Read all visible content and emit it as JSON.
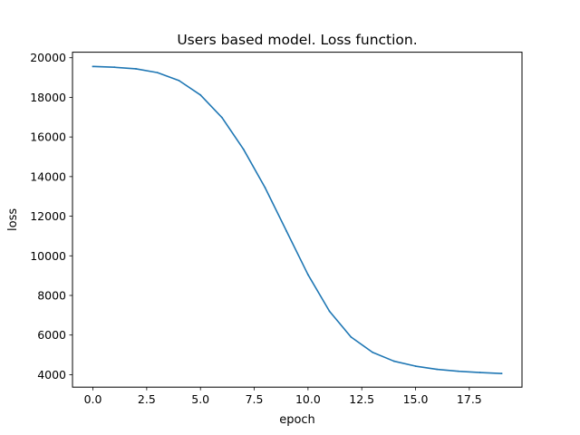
{
  "chart_data": {
    "type": "line",
    "title": "Users based model. Loss function.",
    "xlabel": "epoch",
    "ylabel": "loss",
    "xlim": [
      -0.95,
      19.95
    ],
    "ylim": [
      3370,
      20280
    ],
    "xticks": [
      0.0,
      2.5,
      5.0,
      7.5,
      10.0,
      12.5,
      15.0,
      17.5
    ],
    "xtick_labels": [
      "0.0",
      "2.5",
      "5.0",
      "7.5",
      "10.0",
      "12.5",
      "15.0",
      "17.5"
    ],
    "yticks": [
      4000,
      6000,
      8000,
      10000,
      12000,
      14000,
      16000,
      18000,
      20000
    ],
    "ytick_labels": [
      "4000",
      "6000",
      "8000",
      "10000",
      "12000",
      "14000",
      "16000",
      "18000",
      "20000"
    ],
    "grid": false,
    "series": [
      {
        "color": "#1f77b4",
        "x": [
          0,
          1,
          2,
          3,
          4,
          5,
          6,
          7,
          8,
          9,
          10,
          11,
          12,
          13,
          14,
          15,
          16,
          17,
          18,
          19
        ],
        "y": [
          19560,
          19520,
          19440,
          19250,
          18850,
          18120,
          16980,
          15380,
          13450,
          11250,
          9050,
          7200,
          5900,
          5130,
          4680,
          4430,
          4270,
          4170,
          4110,
          4060
        ]
      }
    ]
  }
}
